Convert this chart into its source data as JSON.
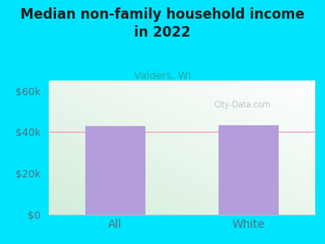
{
  "categories": [
    "All",
    "White"
  ],
  "values": [
    43000,
    43500
  ],
  "bar_color": "#b39ddb",
  "title": "Median non-family household income\nin 2022",
  "subtitle": "Valders, WI",
  "subtitle_color": "#26a69a",
  "title_color": "#212121",
  "title_fontsize": 12,
  "subtitle_fontsize": 9,
  "figure_bg_color": "#00e5ff",
  "ylabel_ticks": [
    0,
    20000,
    40000,
    60000
  ],
  "ylabel_labels": [
    "$0",
    "$20k",
    "$40k",
    "$60k"
  ],
  "ylim": [
    0,
    65000
  ],
  "tick_color": "#546e7a",
  "grid_color": "#f48fb1",
  "watermark": "City-Data.com",
  "watermark_color": "#b0bec5",
  "bar_width": 0.45,
  "xlabel_fontsize": 10,
  "tick_fontsize": 9
}
